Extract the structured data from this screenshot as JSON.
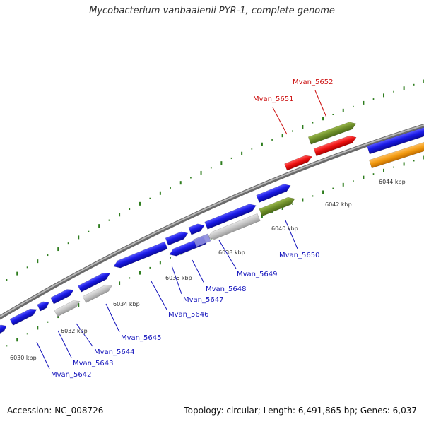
{
  "title": "Mycobacterium vanbaalenii PYR-1, complete genome",
  "footer": {
    "accession": "Accession: NC_008726",
    "summary": "Topology: circular; Length: 6,491,865 bp; Genes: 6,037"
  },
  "colors": {
    "blue_gene": "#1a1ae6",
    "grey_gene": "#c4c4c4",
    "olive_gene": "#6e8e2a",
    "red_gene": "#ee1111",
    "orange_gene": "#f29a10",
    "tick_green": "#2e7d1e",
    "label_blue": "#1111bb",
    "label_red": "#cc1111",
    "backbone": "#8a8a8a"
  },
  "scale_labels": [
    "6030 kbp",
    "6032 kbp",
    "6034 kbp",
    "6036 kbp",
    "6038 kbp",
    "6040 kbp",
    "6042 kbp",
    "6044 kbp"
  ],
  "gene_labels": [
    {
      "name": "Mvan_5642",
      "color": "blue"
    },
    {
      "name": "Mvan_5643",
      "color": "blue"
    },
    {
      "name": "Mvan_5644",
      "color": "blue"
    },
    {
      "name": "Mvan_5645",
      "color": "blue"
    },
    {
      "name": "Mvan_5646",
      "color": "blue"
    },
    {
      "name": "Mvan_5647",
      "color": "blue"
    },
    {
      "name": "Mvan_5648",
      "color": "blue"
    },
    {
      "name": "Mvan_5649",
      "color": "blue"
    },
    {
      "name": "Mvan_5650",
      "color": "blue"
    },
    {
      "name": "Mvan_5651",
      "color": "red"
    },
    {
      "name": "Mvan_5652",
      "color": "red"
    }
  ]
}
